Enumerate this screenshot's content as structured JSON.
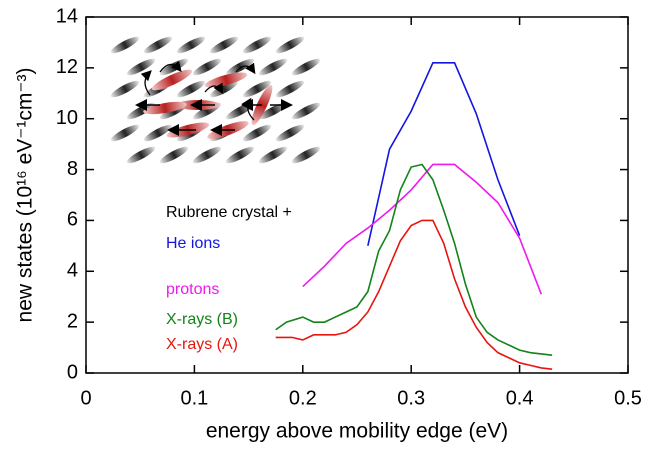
{
  "chart_data": {
    "type": "line",
    "x_label": "energy above mobility edge (eV)",
    "y_label": "new states (10¹⁶ eV⁻¹cm⁻³)",
    "annotation": "Rubrene crystal +",
    "xlim": [
      0,
      0.5
    ],
    "xticks": [
      0,
      0.1,
      0.2,
      0.3,
      0.4,
      0.5
    ],
    "ylim": [
      0,
      14
    ],
    "yticks": [
      0,
      2,
      4,
      6,
      8,
      10,
      12,
      14
    ],
    "series": [
      {
        "name": "He ions",
        "color": "#1515e0",
        "x": [
          0.26,
          0.28,
          0.3,
          0.32,
          0.34,
          0.36,
          0.38,
          0.4
        ],
        "values": [
          5.0,
          8.8,
          10.3,
          12.2,
          12.2,
          10.2,
          7.6,
          5.4
        ]
      },
      {
        "name": "protons",
        "color": "#ee1aee",
        "x": [
          0.2,
          0.22,
          0.24,
          0.26,
          0.28,
          0.3,
          0.32,
          0.34,
          0.36,
          0.38,
          0.4,
          0.42
        ],
        "values": [
          3.4,
          4.2,
          5.1,
          5.7,
          6.4,
          7.2,
          8.2,
          8.2,
          7.5,
          6.7,
          5.3,
          3.1
        ]
      },
      {
        "name": "X-rays (B)",
        "color": "#13831a",
        "x": [
          0.175,
          0.185,
          0.2,
          0.21,
          0.22,
          0.23,
          0.24,
          0.25,
          0.26,
          0.27,
          0.28,
          0.29,
          0.3,
          0.31,
          0.32,
          0.33,
          0.34,
          0.35,
          0.36,
          0.37,
          0.38,
          0.39,
          0.4,
          0.41,
          0.43
        ],
        "values": [
          1.7,
          2.0,
          2.2,
          2.0,
          2.0,
          2.2,
          2.4,
          2.6,
          3.2,
          4.8,
          5.6,
          7.2,
          8.1,
          8.2,
          7.6,
          6.4,
          5.1,
          3.5,
          2.2,
          1.6,
          1.3,
          1.1,
          0.9,
          0.8,
          0.7
        ]
      },
      {
        "name": "X-rays (A)",
        "color": "#e8150f",
        "x": [
          0.175,
          0.19,
          0.2,
          0.21,
          0.22,
          0.23,
          0.24,
          0.25,
          0.26,
          0.27,
          0.28,
          0.29,
          0.3,
          0.31,
          0.32,
          0.33,
          0.34,
          0.35,
          0.36,
          0.37,
          0.38,
          0.39,
          0.4,
          0.41,
          0.42,
          0.43
        ],
        "values": [
          1.4,
          1.4,
          1.3,
          1.5,
          1.5,
          1.5,
          1.6,
          1.9,
          2.4,
          3.2,
          4.2,
          5.2,
          5.8,
          6.0,
          6.0,
          5.1,
          3.7,
          2.6,
          1.8,
          1.2,
          0.8,
          0.6,
          0.4,
          0.3,
          0.2,
          0.15
        ]
      }
    ]
  }
}
